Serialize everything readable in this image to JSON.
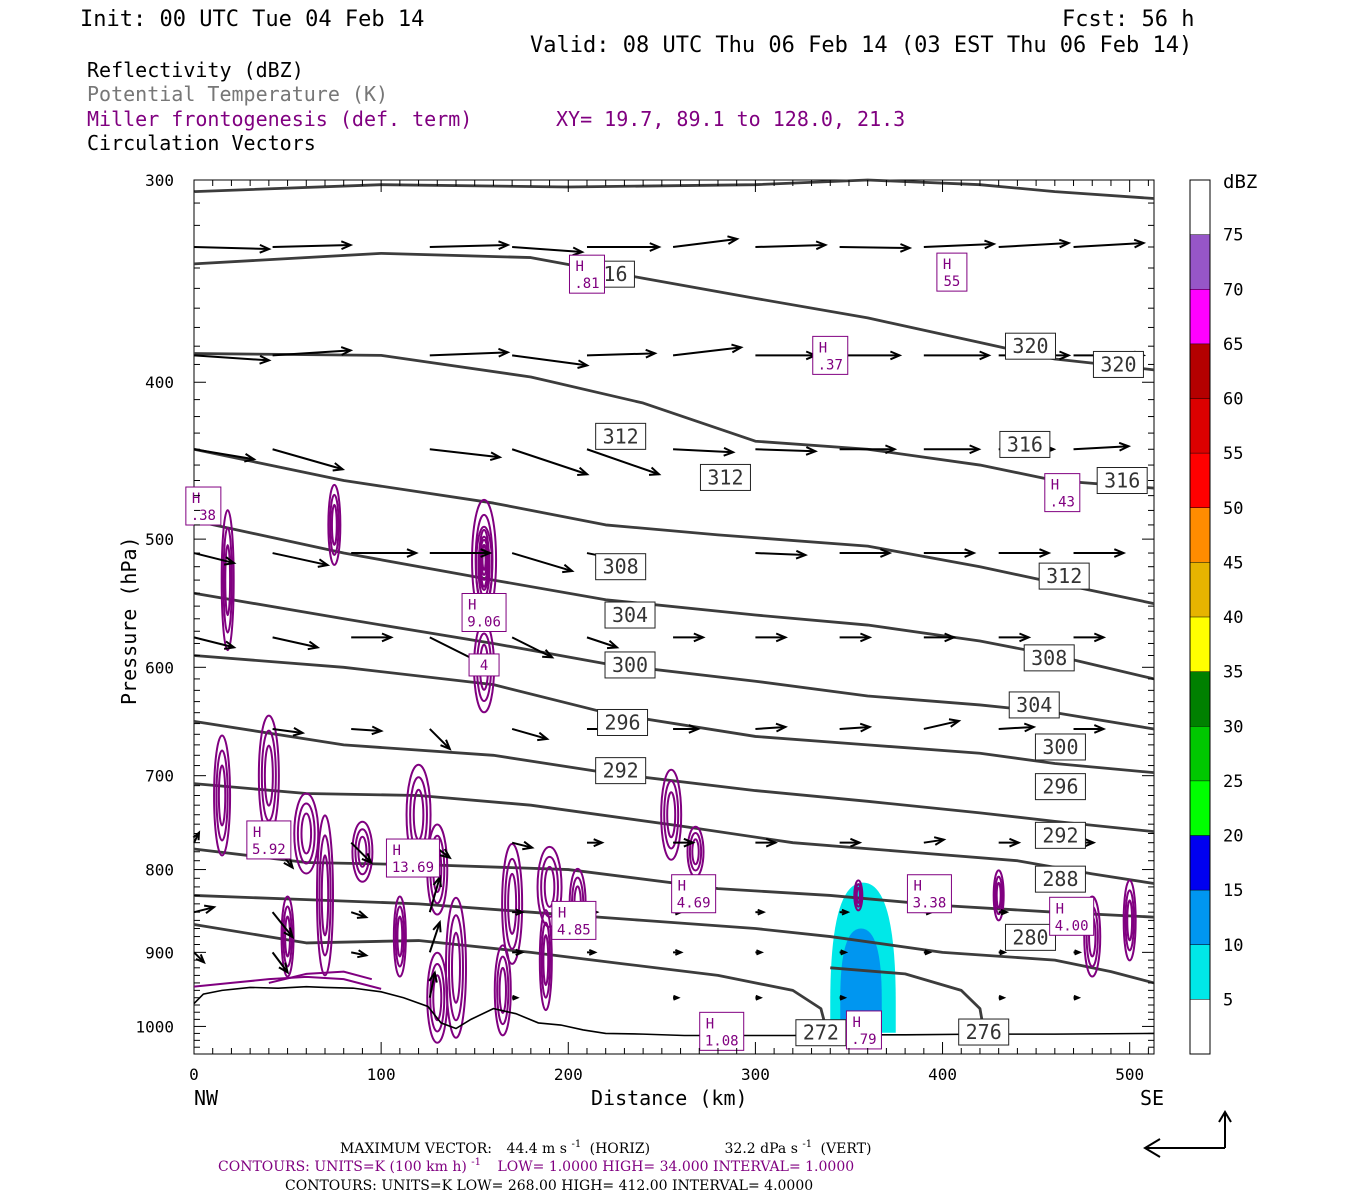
{
  "header": {
    "init": "Init: 00 UTC Tue 04 Feb 14",
    "fcst": "Fcst:   56 h",
    "valid": "Valid: 08 UTC Thu 06 Feb 14 (03 EST Thu 06 Feb 14)"
  },
  "legend": {
    "reflectivity": "Reflectivity (dBZ)",
    "theta": "Potential Temperature (K)",
    "fronto": "Miller frontogenesis (def. term)",
    "xy": "XY=  19.7, 89.1 to 128.0, 21.3",
    "vectors": "Circulation Vectors"
  },
  "axes": {
    "ylabel": "Pressure (hPa)",
    "xlabel": "Distance (km)",
    "left_end": "NW",
    "right_end": "SE",
    "yticks": [
      "300",
      "400",
      "500",
      "600",
      "700",
      "800",
      "900",
      "1000"
    ],
    "xticks": [
      "0",
      "100",
      "200",
      "300",
      "400",
      "500"
    ]
  },
  "colorbar": {
    "unit": "dBZ",
    "labels": [
      "75",
      "70",
      "65",
      "60",
      "55",
      "50",
      "45",
      "40",
      "35",
      "30",
      "25",
      "20",
      "15",
      "10",
      "5"
    ],
    "colors": [
      "#ffffff",
      "#00e8e8",
      "#0096f0",
      "#0000f0",
      "#00ff00",
      "#00c800",
      "#008000",
      "#ffff00",
      "#e6b400",
      "#ff8c00",
      "#ff0000",
      "#dc0000",
      "#b40000",
      "#ff00ff",
      "#9656c8",
      "#ffffff"
    ]
  },
  "footer": {
    "max_vector_label": "MAXIMUM VECTOR:",
    "max_vector_horiz": "44.4 m s",
    "horiz_tag": "(HORIZ)",
    "max_vector_vert": "32.2 dPa s",
    "vert_tag": "(VERT)",
    "exp": "-1",
    "contours1_a": "CONTOURS:  UNITS=K (100 km h)",
    "contours1_b": "LOW=  1.0000       HIGH=  34.000       INTERVAL=   1.0000",
    "contours2": "CONTOURS:  UNITS=K  LOW=  268.00       HIGH=  412.00       INTERVAL=   4.0000"
  },
  "chart_data": {
    "type": "cross-section",
    "x_range_km": [
      0,
      513
    ],
    "y_range_hPa": [
      300,
      1040
    ],
    "y_scale": "log",
    "theta_labels": [
      {
        "v": "316",
        "x": 222,
        "p": 343
      },
      {
        "v": "320",
        "x": 447,
        "p": 380
      },
      {
        "v": "320",
        "x": 494,
        "p": 390
      },
      {
        "v": "316",
        "x": 444,
        "p": 437
      },
      {
        "v": "316",
        "x": 496,
        "p": 460
      },
      {
        "v": "312",
        "x": 228,
        "p": 432
      },
      {
        "v": "312",
        "x": 284,
        "p": 458
      },
      {
        "v": "312",
        "x": 465,
        "p": 527
      },
      {
        "v": "308",
        "x": 228,
        "p": 520
      },
      {
        "v": "308",
        "x": 457,
        "p": 592
      },
      {
        "v": "304",
        "x": 233,
        "p": 557
      },
      {
        "v": "304",
        "x": 449,
        "p": 633
      },
      {
        "v": "300",
        "x": 233,
        "p": 598
      },
      {
        "v": "300",
        "x": 463,
        "p": 672
      },
      {
        "v": "296",
        "x": 229,
        "p": 649
      },
      {
        "v": "296",
        "x": 463,
        "p": 711
      },
      {
        "v": "292",
        "x": 228,
        "p": 695
      },
      {
        "v": "292",
        "x": 463,
        "p": 762
      },
      {
        "v": "288",
        "x": 463,
        "p": 811
      },
      {
        "v": "280",
        "x": 447,
        "p": 881
      },
      {
        "v": "272",
        "x": 335,
        "p": 1009
      },
      {
        "v": "276",
        "x": 422,
        "p": 1008
      }
    ],
    "fronto_maxima": [
      {
        "label": "H",
        "value": ".81",
        "x": 210,
        "p": 343
      },
      {
        "label": "H",
        "value": ".37",
        "x": 340,
        "p": 385
      },
      {
        "label": "H",
        "value": "55",
        "x": 405,
        "p": 342
      },
      {
        "label": "H",
        "value": ".43",
        "x": 464,
        "p": 468
      },
      {
        "label": "H",
        "value": ".38",
        "x": 5,
        "p": 477
      },
      {
        "label": "H",
        "value": "9.06",
        "x": 155,
        "p": 555
      },
      {
        "label": "",
        "value": "4",
        "x": 155,
        "p": 598
      },
      {
        "label": "H",
        "value": "5.92",
        "x": 40,
        "p": 767
      },
      {
        "label": "H",
        "value": "13.69",
        "x": 117,
        "p": 787
      },
      {
        "label": "H",
        "value": "4.69",
        "x": 267,
        "p": 828
      },
      {
        "label": "H",
        "value": "4.85",
        "x": 203,
        "p": 860
      },
      {
        "label": "H",
        "value": "3.38",
        "x": 393,
        "p": 828
      },
      {
        "label": "H",
        "value": "4.00",
        "x": 469,
        "p": 855
      },
      {
        "label": "H",
        "value": "1.08",
        "x": 282,
        "p": 1007
      },
      {
        "label": "H",
        "value": ".79",
        "x": 358,
        "p": 1005
      }
    ],
    "reflectivity_region": {
      "x_km": [
        340,
        375
      ],
      "p_top_hPa": 815,
      "max_dBZ": 10
    }
  }
}
